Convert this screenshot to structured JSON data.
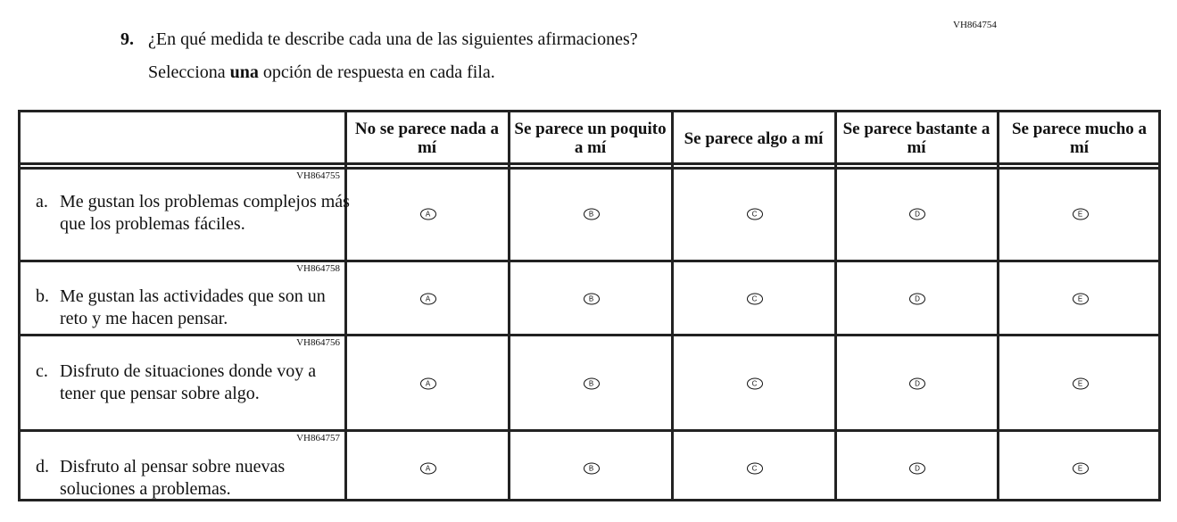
{
  "question": {
    "number": "9.",
    "text": "¿En qué medida te describe cada una de las siguientes afirmaciones?",
    "instruction_pre": "Selecciona ",
    "instruction_bold": "una",
    "instruction_post": " opción de respuesta en cada fila.",
    "id": "VH864754"
  },
  "columns": [
    "No se parece nada a mí",
    "Se parece un poquito a mí",
    "Se parece algo a mí",
    "Se parece bastante a mí",
    "Se parece mucho a mí"
  ],
  "options": [
    "A",
    "B",
    "C",
    "D",
    "E"
  ],
  "rows": [
    {
      "letter": "a.",
      "id": "VH864755",
      "text": "Me gustan los problemas complejos más que los problemas fáciles."
    },
    {
      "letter": "b.",
      "id": "VH864758",
      "text": "Me gustan las actividades que son un reto y me hacen pensar."
    },
    {
      "letter": "c.",
      "id": "VH864756",
      "text": "Disfruto de situaciones donde voy a tener que pensar sobre algo."
    },
    {
      "letter": "d.",
      "id": "VH864757",
      "text": "Disfruto al pensar sobre nuevas soluciones a problemas."
    }
  ]
}
